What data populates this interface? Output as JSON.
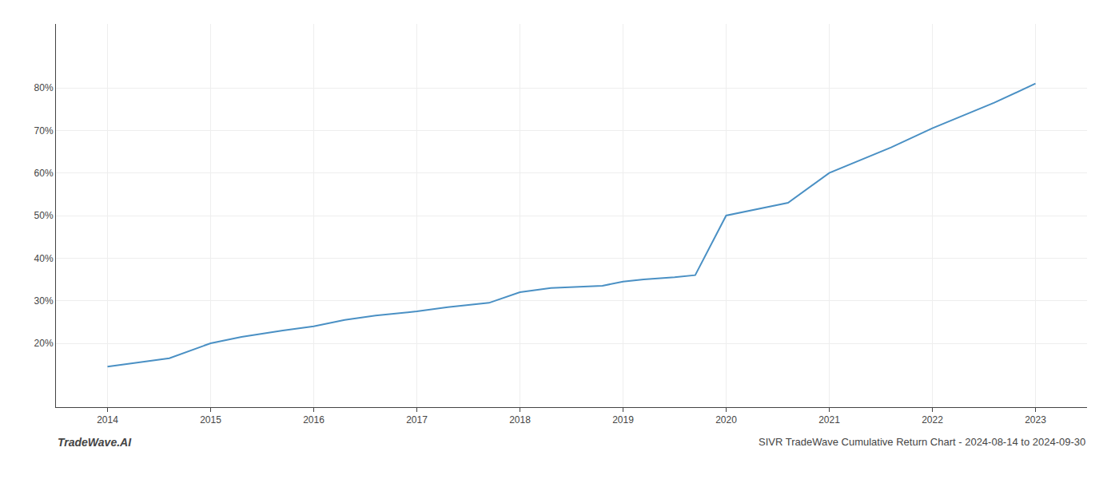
{
  "chart_data": {
    "type": "line",
    "title": "SIVR TradeWave Cumulative Return Chart - 2024-08-14 to 2024-09-30",
    "annotations": [
      "TradeWave.AI"
    ],
    "x": [
      2014.0,
      2014.3,
      2014.6,
      2015.0,
      2015.3,
      2015.7,
      2016.0,
      2016.3,
      2016.6,
      2017.0,
      2017.3,
      2017.7,
      2018.0,
      2018.3,
      2018.6,
      2018.8,
      2019.0,
      2019.2,
      2019.5,
      2019.7,
      2020.0,
      2020.3,
      2020.6,
      2021.0,
      2021.3,
      2021.6,
      2022.0,
      2022.3,
      2022.6,
      2023.0
    ],
    "values": [
      14.5,
      15.5,
      16.5,
      20.0,
      21.5,
      23.0,
      24.0,
      25.5,
      26.5,
      27.5,
      28.5,
      29.5,
      32.0,
      33.0,
      33.3,
      33.5,
      34.5,
      35.0,
      35.5,
      36.0,
      50.0,
      51.5,
      53.0,
      60.0,
      63.0,
      66.0,
      70.5,
      73.5,
      76.5,
      81.0
    ],
    "color": "#4a90c4",
    "xlim": [
      2013.5,
      2023.5
    ],
    "xticks": [
      2014,
      2015,
      2016,
      2017,
      2018,
      2019,
      2020,
      2021,
      2022,
      2023
    ],
    "ylim": [
      5,
      95
    ],
    "yticks": [
      {
        "value": 20,
        "label": "20%"
      },
      {
        "value": 30,
        "label": "30%"
      },
      {
        "value": 40,
        "label": "40%"
      },
      {
        "value": 50,
        "label": "50%"
      },
      {
        "value": 60,
        "label": "60%"
      },
      {
        "value": 70,
        "label": "70%"
      },
      {
        "value": 80,
        "label": "80%"
      }
    ],
    "grid": true
  }
}
